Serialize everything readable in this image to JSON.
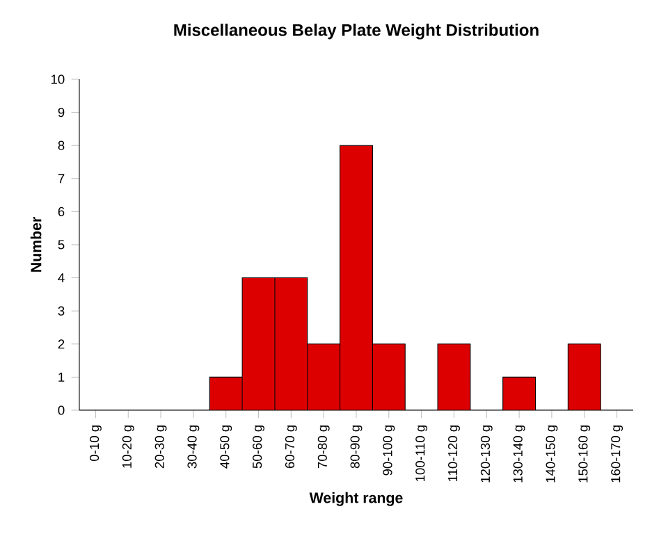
{
  "chart_data": {
    "type": "bar",
    "title": "Miscellaneous Belay Plate Weight Distribution",
    "xlabel": "Weight range",
    "ylabel": "Number",
    "categories": [
      "0-10 g",
      "10-20 g",
      "20-30 g",
      "30-40 g",
      "40-50 g",
      "50-60 g",
      "60-70 g",
      "70-80 g",
      "80-90 g",
      "90-100 g",
      "100-110 g",
      "110-120 g",
      "120-130 g",
      "130-140 g",
      "140-150 g",
      "150-160 g",
      "160-170 g"
    ],
    "values": [
      0,
      0,
      0,
      0,
      1,
      4,
      4,
      2,
      8,
      2,
      0,
      2,
      0,
      1,
      0,
      2,
      0
    ],
    "color": "#dd0000",
    "ylim": [
      0,
      10
    ],
    "yticks": [
      0,
      1,
      2,
      3,
      4,
      5,
      6,
      7,
      8,
      9,
      10
    ],
    "grid": false
  }
}
